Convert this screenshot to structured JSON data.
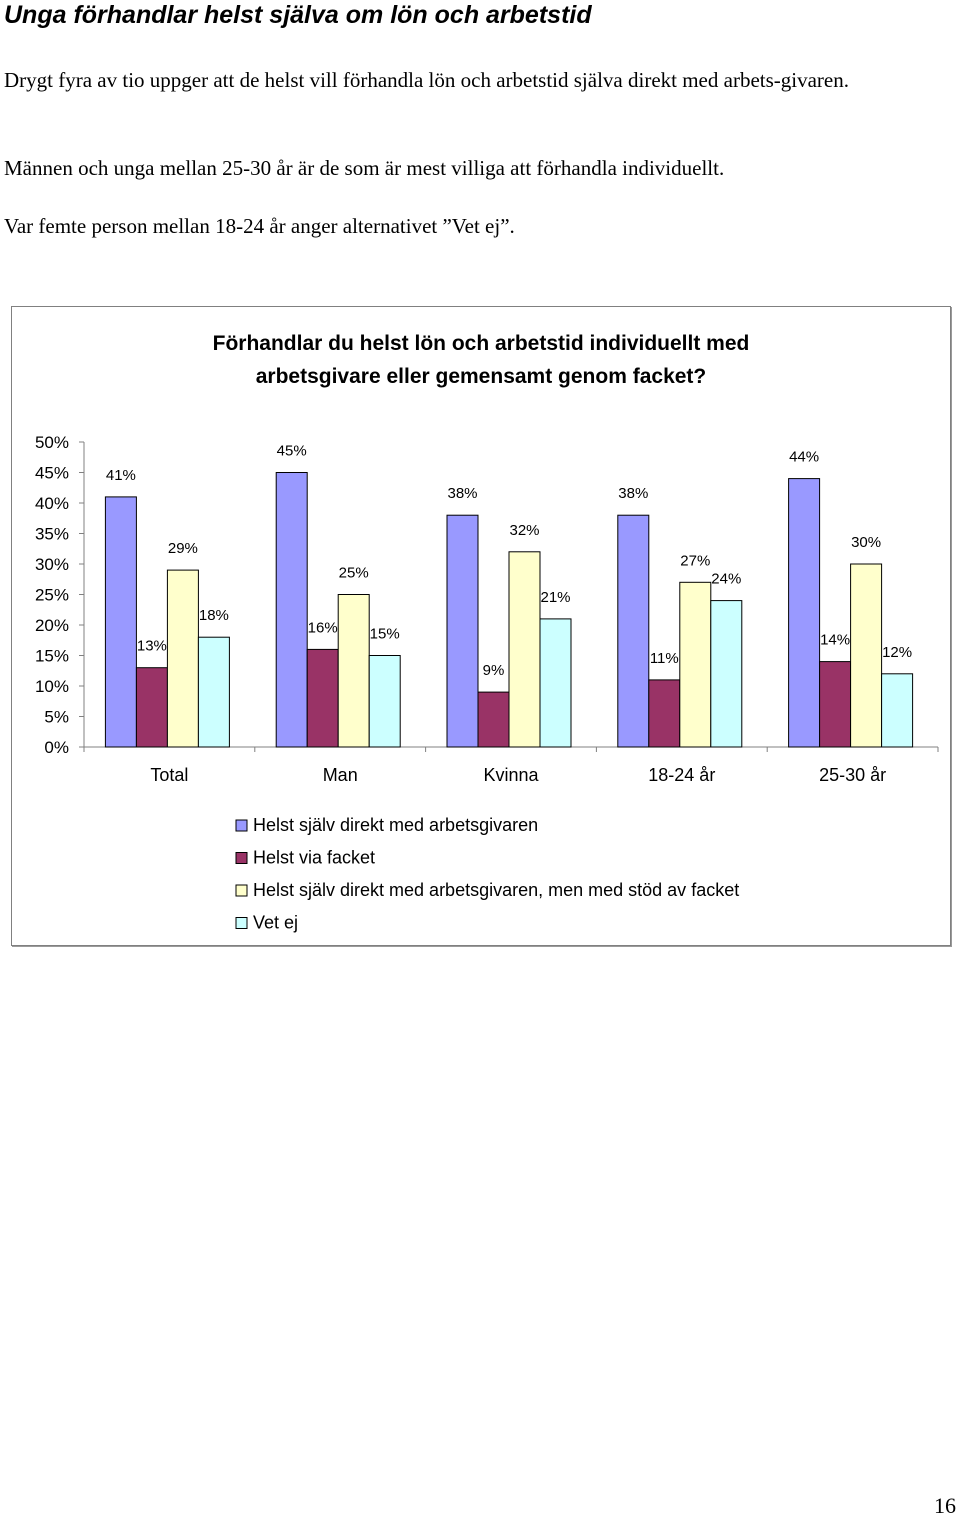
{
  "heading": "Unga förhandlar helst själva om lön och arbetstid",
  "paragraphs": [
    "Drygt fyra av tio uppger att de helst vill förhandla lön och arbetstid själva direkt med arbets-givaren.",
    "Männen och unga mellan 25-30 år är de som är mest villiga att förhandla individuellt.",
    "Var femte person mellan 18-24 år anger alternativet ”Vet ej”."
  ],
  "page_number": "16",
  "chart_data": {
    "type": "bar",
    "title": [
      "Förhandlar du helst lön och arbetstid individuellt med",
      "arbetsgivare eller gemensamt genom facket?"
    ],
    "categories": [
      "Total",
      "Man",
      "Kvinna",
      "18-24 år",
      "25-30 år"
    ],
    "series": [
      {
        "name": "Helst själv direkt med arbetsgivaren",
        "color": "#9999ff",
        "values": [
          41,
          45,
          38,
          38,
          44
        ]
      },
      {
        "name": "Helst via facket",
        "color": "#993366",
        "values": [
          13,
          16,
          9,
          11,
          14
        ]
      },
      {
        "name": "Helst själv direkt med arbetsgivaren, men med stöd av facket",
        "color": "#ffffcc",
        "values": [
          29,
          25,
          32,
          27,
          30
        ]
      },
      {
        "name": "Vet ej",
        "color": "#ccffff",
        "values": [
          18,
          15,
          21,
          24,
          12
        ]
      }
    ],
    "data_labels": [
      [
        "41%",
        "13%",
        "29%",
        "18%"
      ],
      [
        "45%",
        "16%",
        "25%",
        "15%"
      ],
      [
        "38%",
        "9%",
        "32%",
        "21%"
      ],
      [
        "38%",
        "11%",
        "27%",
        "24%"
      ],
      [
        "44%",
        "14%",
        "30%",
        "12%"
      ]
    ],
    "yticks": [
      "0%",
      "5%",
      "10%",
      "15%",
      "20%",
      "25%",
      "30%",
      "35%",
      "40%",
      "45%",
      "50%"
    ],
    "ylim": [
      0,
      50
    ],
    "xlabel": "",
    "ylabel": "",
    "legend_position": "bottom",
    "grid": false
  }
}
